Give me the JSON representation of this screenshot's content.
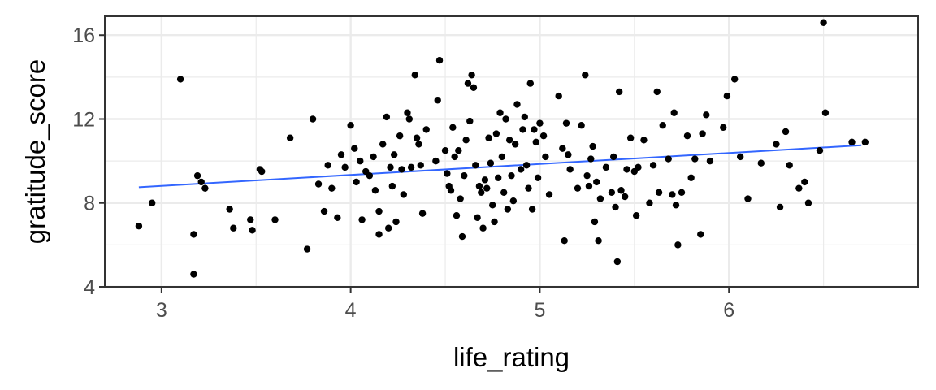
{
  "chart_data": {
    "type": "scatter",
    "title": "",
    "xlabel": "life_rating",
    "ylabel": "gratitude_score",
    "xlim": [
      2.7,
      7.0
    ],
    "ylim": [
      4,
      16.9
    ],
    "x_ticks": [
      3,
      4,
      5,
      6
    ],
    "x_tick_labels": [
      "3",
      "4",
      "5",
      "6"
    ],
    "y_ticks": [
      4,
      8,
      12,
      16
    ],
    "y_tick_labels": [
      "4",
      "8",
      "12",
      "16"
    ],
    "grid": true,
    "background": "#ffffff",
    "panel_border": "#333333",
    "grid_color": "#ebebeb",
    "point_color": "#000000",
    "trend_color": "#3366ff",
    "trend_line": {
      "x": [
        2.88,
        6.7
      ],
      "y": [
        8.75,
        10.75
      ]
    },
    "points": [
      [
        2.88,
        6.9
      ],
      [
        2.95,
        8.0
      ],
      [
        3.1,
        13.9
      ],
      [
        3.17,
        6.5
      ],
      [
        3.17,
        4.6
      ],
      [
        3.19,
        9.3
      ],
      [
        3.21,
        9.0
      ],
      [
        3.23,
        8.7
      ],
      [
        3.36,
        7.7
      ],
      [
        3.38,
        6.8
      ],
      [
        3.47,
        7.2
      ],
      [
        3.48,
        6.7
      ],
      [
        3.52,
        9.6
      ],
      [
        3.53,
        9.5
      ],
      [
        3.6,
        7.2
      ],
      [
        3.68,
        11.1
      ],
      [
        3.77,
        5.8
      ],
      [
        3.8,
        12.0
      ],
      [
        3.83,
        8.9
      ],
      [
        3.86,
        7.6
      ],
      [
        3.88,
        9.8
      ],
      [
        3.9,
        8.7
      ],
      [
        3.93,
        7.3
      ],
      [
        3.95,
        10.3
      ],
      [
        3.97,
        9.7
      ],
      [
        4.0,
        11.7
      ],
      [
        4.02,
        10.6
      ],
      [
        4.03,
        9.0
      ],
      [
        4.05,
        10.0
      ],
      [
        4.06,
        7.2
      ],
      [
        4.08,
        9.5
      ],
      [
        4.1,
        9.3
      ],
      [
        4.12,
        10.2
      ],
      [
        4.13,
        8.6
      ],
      [
        4.15,
        7.6
      ],
      [
        4.15,
        6.5
      ],
      [
        4.17,
        10.8
      ],
      [
        4.19,
        12.1
      ],
      [
        4.2,
        6.8
      ],
      [
        4.21,
        9.7
      ],
      [
        4.22,
        8.8
      ],
      [
        4.23,
        10.3
      ],
      [
        4.24,
        7.1
      ],
      [
        4.26,
        11.2
      ],
      [
        4.27,
        9.6
      ],
      [
        4.28,
        8.4
      ],
      [
        4.3,
        12.3
      ],
      [
        4.31,
        12.0
      ],
      [
        4.32,
        9.7
      ],
      [
        4.34,
        14.1
      ],
      [
        4.35,
        11.1
      ],
      [
        4.36,
        10.8
      ],
      [
        4.37,
        9.8
      ],
      [
        4.38,
        7.5
      ],
      [
        4.4,
        11.5
      ],
      [
        4.45,
        10.0
      ],
      [
        4.46,
        12.9
      ],
      [
        4.47,
        14.8
      ],
      [
        4.5,
        10.5
      ],
      [
        4.51,
        9.4
      ],
      [
        4.52,
        8.8
      ],
      [
        4.53,
        8.6
      ],
      [
        4.54,
        11.6
      ],
      [
        4.55,
        10.2
      ],
      [
        4.56,
        7.4
      ],
      [
        4.57,
        10.5
      ],
      [
        4.58,
        8.2
      ],
      [
        4.59,
        6.4
      ],
      [
        4.6,
        9.3
      ],
      [
        4.61,
        11.0
      ],
      [
        4.62,
        13.7
      ],
      [
        4.63,
        11.9
      ],
      [
        4.64,
        14.1
      ],
      [
        4.65,
        13.5
      ],
      [
        4.66,
        9.8
      ],
      [
        4.67,
        7.3
      ],
      [
        4.68,
        8.8
      ],
      [
        4.69,
        8.5
      ],
      [
        4.7,
        6.8
      ],
      [
        4.71,
        9.1
      ],
      [
        4.72,
        8.7
      ],
      [
        4.73,
        11.1
      ],
      [
        4.74,
        9.9
      ],
      [
        4.75,
        7.9
      ],
      [
        4.76,
        7.1
      ],
      [
        4.77,
        11.3
      ],
      [
        4.78,
        9.2
      ],
      [
        4.79,
        12.3
      ],
      [
        4.8,
        10.2
      ],
      [
        4.81,
        8.5
      ],
      [
        4.82,
        12.0
      ],
      [
        4.83,
        7.7
      ],
      [
        4.84,
        11.0
      ],
      [
        4.85,
        9.3
      ],
      [
        4.86,
        8.1
      ],
      [
        4.87,
        10.8
      ],
      [
        4.88,
        12.7
      ],
      [
        4.9,
        9.6
      ],
      [
        4.91,
        11.5
      ],
      [
        4.92,
        12.1
      ],
      [
        4.93,
        9.8
      ],
      [
        4.94,
        8.7
      ],
      [
        4.95,
        13.7
      ],
      [
        4.96,
        7.7
      ],
      [
        4.97,
        11.5
      ],
      [
        4.98,
        10.9
      ],
      [
        4.99,
        9.2
      ],
      [
        5.0,
        11.8
      ],
      [
        5.02,
        11.2
      ],
      [
        5.03,
        10.2
      ],
      [
        5.05,
        8.4
      ],
      [
        5.1,
        13.1
      ],
      [
        5.12,
        10.6
      ],
      [
        5.13,
        6.2
      ],
      [
        5.14,
        11.8
      ],
      [
        5.15,
        10.3
      ],
      [
        5.16,
        9.6
      ],
      [
        5.2,
        8.7
      ],
      [
        5.22,
        11.7
      ],
      [
        5.24,
        14.1
      ],
      [
        5.25,
        9.3
      ],
      [
        5.26,
        8.8
      ],
      [
        5.27,
        10.1
      ],
      [
        5.28,
        10.7
      ],
      [
        5.29,
        7.1
      ],
      [
        5.3,
        9.0
      ],
      [
        5.31,
        6.2
      ],
      [
        5.32,
        8.2
      ],
      [
        5.35,
        9.7
      ],
      [
        5.38,
        8.5
      ],
      [
        5.39,
        10.2
      ],
      [
        5.4,
        7.8
      ],
      [
        5.41,
        5.2
      ],
      [
        5.42,
        13.3
      ],
      [
        5.43,
        8.6
      ],
      [
        5.45,
        8.3
      ],
      [
        5.46,
        9.6
      ],
      [
        5.48,
        11.1
      ],
      [
        5.5,
        9.5
      ],
      [
        5.51,
        7.4
      ],
      [
        5.52,
        9.7
      ],
      [
        5.55,
        11.0
      ],
      [
        5.58,
        8.0
      ],
      [
        5.6,
        9.8
      ],
      [
        5.62,
        13.3
      ],
      [
        5.63,
        8.5
      ],
      [
        5.65,
        11.7
      ],
      [
        5.68,
        10.1
      ],
      [
        5.7,
        8.4
      ],
      [
        5.71,
        12.3
      ],
      [
        5.72,
        7.9
      ],
      [
        5.73,
        6.0
      ],
      [
        5.75,
        8.5
      ],
      [
        5.78,
        11.2
      ],
      [
        5.8,
        9.2
      ],
      [
        5.82,
        10.1
      ],
      [
        5.85,
        6.5
      ],
      [
        5.86,
        11.3
      ],
      [
        5.88,
        12.2
      ],
      [
        5.9,
        10.0
      ],
      [
        5.97,
        11.6
      ],
      [
        5.99,
        13.1
      ],
      [
        6.03,
        13.9
      ],
      [
        6.06,
        10.2
      ],
      [
        6.1,
        8.2
      ],
      [
        6.17,
        9.9
      ],
      [
        6.25,
        10.8
      ],
      [
        6.27,
        7.8
      ],
      [
        6.3,
        11.4
      ],
      [
        6.32,
        9.8
      ],
      [
        6.37,
        8.7
      ],
      [
        6.4,
        9.0
      ],
      [
        6.42,
        8.0
      ],
      [
        6.48,
        10.5
      ],
      [
        6.5,
        16.6
      ],
      [
        6.51,
        12.3
      ],
      [
        6.65,
        10.9
      ],
      [
        6.72,
        10.9
      ]
    ]
  }
}
